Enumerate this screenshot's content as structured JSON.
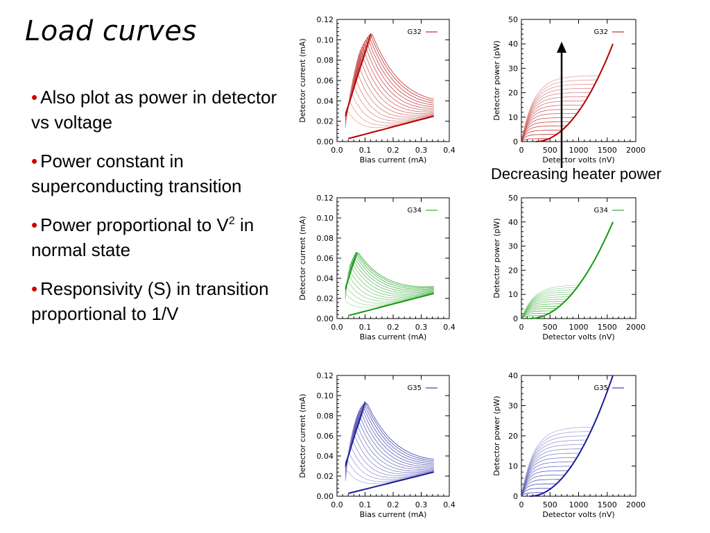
{
  "slide": {
    "title": "Load curves",
    "bullets": [
      {
        "text": "Also plot as power in detector vs voltage",
        "sup": "",
        "after": ""
      },
      {
        "text": "Power constant in superconducting transition",
        "sup": "",
        "after": ""
      },
      {
        "text": "Power proportional to V",
        "sup": "2",
        "after": " in normal state"
      },
      {
        "text": "Responsivity (S)  in transition proportional to 1/V",
        "sup": "",
        "after": ""
      }
    ],
    "arrow_label": "Decreasing heater power"
  },
  "colors": {
    "bullet": "#cc0000",
    "G32": "#b00000",
    "G34": "#119911",
    "G35": "#1a1a99"
  },
  "chart_data": [
    {
      "type": "line",
      "panel": "G32",
      "kind": "iv",
      "legend": "G32",
      "xlabel": "Bias current (mA)",
      "ylabel": "Detector current (mA)",
      "xlim": [
        0,
        0.4
      ],
      "ylim": [
        0,
        0.12
      ],
      "xticks": [
        "0.0",
        "0.1",
        "0.2",
        "0.3",
        "0.4"
      ],
      "yticks": [
        "0.00",
        "0.02",
        "0.04",
        "0.06",
        "0.08",
        "0.10",
        "0.12"
      ],
      "curve_count": 16,
      "peak": {
        "x": 0.12,
        "y": 0.106
      },
      "start": {
        "x": 0.03,
        "y": 0.025
      },
      "baseline_end": {
        "x": 0.345,
        "y": 0.025
      }
    },
    {
      "type": "line",
      "panel": "G32",
      "kind": "pv",
      "legend": "G32",
      "xlabel": "Detector volts (nV)",
      "ylabel": "Detector power (pW)",
      "xlim": [
        0,
        2000
      ],
      "ylim": [
        0,
        50
      ],
      "xticks": [
        "0",
        "500",
        "1000",
        "1500",
        "2000"
      ],
      "yticks": [
        "0",
        "10",
        "20",
        "30",
        "40",
        "50"
      ],
      "curve_count": 16,
      "plateau_max": 27,
      "normal_end": {
        "x": 1600,
        "y": 40
      },
      "normal_start": 250
    },
    {
      "type": "line",
      "panel": "G34",
      "kind": "iv",
      "legend": "G34",
      "xlabel": "Bias current (mA)",
      "ylabel": "Detector current (mA)",
      "xlim": [
        0,
        0.4
      ],
      "ylim": [
        0,
        0.12
      ],
      "xticks": [
        "0.0",
        "0.1",
        "0.2",
        "0.3",
        "0.4"
      ],
      "yticks": [
        "0.00",
        "0.02",
        "0.04",
        "0.06",
        "0.08",
        "0.10",
        "0.12"
      ],
      "curve_count": 14,
      "peak": {
        "x": 0.07,
        "y": 0.066
      },
      "start": {
        "x": 0.03,
        "y": 0.029
      },
      "baseline_end": {
        "x": 0.345,
        "y": 0.025
      }
    },
    {
      "type": "line",
      "panel": "G34",
      "kind": "pv",
      "legend": "G34",
      "xlabel": "Detector volts (nV)",
      "ylabel": "Detector power (pW)",
      "xlim": [
        0,
        2000
      ],
      "ylim": [
        0,
        50
      ],
      "xticks": [
        "0",
        "500",
        "1000",
        "1500",
        "2000"
      ],
      "yticks": [
        "0",
        "10",
        "20",
        "30",
        "40",
        "50"
      ],
      "curve_count": 14,
      "plateau_max": 14,
      "normal_end": {
        "x": 1600,
        "y": 40
      },
      "normal_start": 150
    },
    {
      "type": "line",
      "panel": "G35",
      "kind": "iv",
      "legend": "G35",
      "xlabel": "Bias current (mA)",
      "ylabel": "Detector current (mA)",
      "xlim": [
        0,
        0.4
      ],
      "ylim": [
        0,
        0.12
      ],
      "xticks": [
        "0.0",
        "0.1",
        "0.2",
        "0.3",
        "0.4"
      ],
      "yticks": [
        "0.00",
        "0.02",
        "0.04",
        "0.06",
        "0.08",
        "0.10",
        "0.12"
      ],
      "curve_count": 16,
      "peak": {
        "x": 0.1,
        "y": 0.094
      },
      "start": {
        "x": 0.03,
        "y": 0.03
      },
      "baseline_end": {
        "x": 0.345,
        "y": 0.024
      }
    },
    {
      "type": "line",
      "panel": "G35",
      "kind": "pv",
      "legend": "G35",
      "xlabel": "Detector volts (nV)",
      "ylabel": "Detector power (pW)",
      "xlim": [
        0,
        2000
      ],
      "ylim": [
        0,
        40
      ],
      "xticks": [
        "0",
        "500",
        "1000",
        "1500",
        "2000"
      ],
      "yticks": [
        "0",
        "10",
        "20",
        "30",
        "40"
      ],
      "curve_count": 16,
      "plateau_max": 23,
      "normal_end": {
        "x": 1600,
        "y": 40
      },
      "normal_start": 150
    }
  ]
}
